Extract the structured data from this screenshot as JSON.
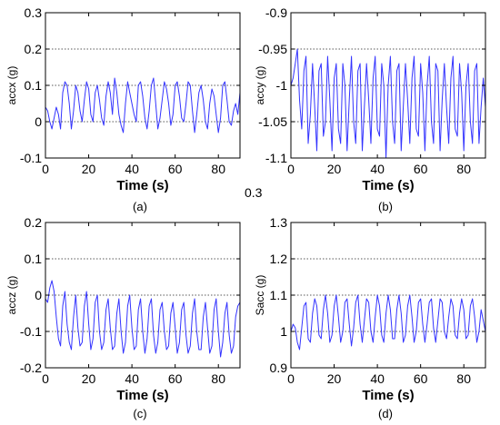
{
  "stray_label": "0.3",
  "chart_data": [
    {
      "type": "line",
      "caption": "(a)",
      "xlabel": "Time (s)",
      "ylabel": "accx (g)",
      "xlim": [
        0,
        90
      ],
      "ylim": [
        -0.1,
        0.3
      ],
      "xticks": [
        0,
        20,
        40,
        60,
        80
      ],
      "xtick_labels": [
        "0",
        "20",
        "40",
        "60",
        "80"
      ],
      "yticks": [
        -0.1,
        0,
        0.1,
        0.2,
        0.3
      ],
      "ytick_labels": [
        "-0.1",
        "0",
        "0.1",
        "0.2",
        "0.3"
      ],
      "grid": "horizontal dotted",
      "line_color": "#3333ff",
      "series": [
        {
          "x": [
            0,
            1,
            2,
            3,
            4,
            5,
            6,
            7,
            8,
            9,
            10,
            11,
            12,
            13,
            14,
            15,
            16,
            17,
            18,
            19,
            20,
            21,
            22,
            23,
            24,
            25,
            26,
            27,
            28,
            29,
            30,
            31,
            32,
            33,
            34,
            35,
            36,
            37,
            38,
            39,
            40,
            41,
            42,
            43,
            44,
            45,
            46,
            47,
            48,
            49,
            50,
            51,
            52,
            53,
            54,
            55,
            56,
            57,
            58,
            59,
            60,
            61,
            62,
            63,
            64,
            65,
            66,
            67,
            68,
            69,
            70,
            71,
            72,
            73,
            74,
            75,
            76,
            77,
            78,
            79,
            80,
            81,
            82,
            83,
            84,
            85,
            86,
            87,
            88,
            89,
            90
          ],
          "y": [
            0.04,
            0.03,
            0.0,
            -0.02,
            0.01,
            0.04,
            0.02,
            -0.02,
            0.08,
            0.11,
            0.1,
            0.05,
            -0.02,
            0.03,
            0.1,
            0.08,
            0.03,
            0.0,
            0.06,
            0.11,
            0.09,
            0.02,
            0.0,
            0.08,
            0.1,
            0.06,
            0.01,
            -0.01,
            0.07,
            0.11,
            0.08,
            0.02,
            0.12,
            0.08,
            0.02,
            -0.01,
            -0.03,
            0.05,
            0.11,
            0.08,
            0.05,
            0.02,
            0.0,
            0.1,
            0.11,
            0.07,
            0.01,
            -0.02,
            0.03,
            0.1,
            0.12,
            0.05,
            -0.02,
            0.01,
            0.06,
            0.11,
            0.09,
            0.05,
            -0.01,
            0.02,
            0.1,
            0.11,
            0.07,
            0.01,
            0.0,
            0.05,
            0.11,
            0.1,
            0.03,
            -0.03,
            0.02,
            0.08,
            0.1,
            0.06,
            0.0,
            -0.02,
            0.05,
            0.09,
            0.07,
            0.02,
            -0.03,
            0.01,
            0.1,
            0.11,
            0.06,
            0.0,
            -0.01,
            0.03,
            0.05,
            0.02,
            0.08
          ]
        }
      ]
    },
    {
      "type": "line",
      "caption": "(b)",
      "xlabel": "Time (s)",
      "ylabel": "accy (g)",
      "xlim": [
        0,
        90
      ],
      "ylim": [
        -1.1,
        -0.9
      ],
      "xticks": [
        0,
        20,
        40,
        60,
        80
      ],
      "xtick_labels": [
        "0",
        "20",
        "40",
        "60",
        "80"
      ],
      "yticks": [
        -1.1,
        -1.05,
        -1.0,
        -0.95,
        -0.9
      ],
      "ytick_labels": [
        "-1.1",
        "-1.05",
        "-1",
        "-0.95",
        "-0.9"
      ],
      "grid": "horizontal dotted",
      "line_color": "#3333ff",
      "series": [
        {
          "x": [
            0,
            1,
            2,
            3,
            4,
            5,
            6,
            7,
            8,
            9,
            10,
            11,
            12,
            13,
            14,
            15,
            16,
            17,
            18,
            19,
            20,
            21,
            22,
            23,
            24,
            25,
            26,
            27,
            28,
            29,
            30,
            31,
            32,
            33,
            34,
            35,
            36,
            37,
            38,
            39,
            40,
            41,
            42,
            43,
            44,
            45,
            46,
            47,
            48,
            49,
            50,
            51,
            52,
            53,
            54,
            55,
            56,
            57,
            58,
            59,
            60,
            61,
            62,
            63,
            64,
            65,
            66,
            67,
            68,
            69,
            70,
            71,
            72,
            73,
            74,
            75,
            76,
            77,
            78,
            79,
            80,
            81,
            82,
            83,
            84,
            85,
            86,
            87,
            88,
            89,
            90
          ],
          "y": [
            -1.0,
            -0.99,
            -0.97,
            -0.95,
            -1.02,
            -1.06,
            -0.98,
            -0.96,
            -1.08,
            -1.04,
            -0.97,
            -1.03,
            -1.09,
            -0.98,
            -0.97,
            -1.07,
            -1.05,
            -0.96,
            -1.02,
            -1.09,
            -0.99,
            -0.97,
            -1.06,
            -1.08,
            -0.97,
            -1.0,
            -1.09,
            -1.02,
            -0.96,
            -1.05,
            -1.08,
            -0.98,
            -0.97,
            -1.09,
            -1.03,
            -0.97,
            -1.02,
            -1.08,
            -0.99,
            -0.96,
            -1.06,
            -1.07,
            -0.97,
            -1.0,
            -1.1,
            -1.0,
            -0.96,
            -1.05,
            -1.08,
            -0.98,
            -0.97,
            -1.09,
            -1.03,
            -0.97,
            -1.02,
            -1.08,
            -0.99,
            -0.96,
            -1.06,
            -1.07,
            -0.97,
            -1.01,
            -1.09,
            -1.0,
            -0.96,
            -1.05,
            -1.08,
            -0.97,
            -0.98,
            -1.09,
            -1.02,
            -0.97,
            -1.03,
            -1.08,
            -0.99,
            -0.96,
            -1.06,
            -1.07,
            -0.97,
            -1.01,
            -1.09,
            -1.0,
            -0.97,
            -1.05,
            -1.08,
            -0.98,
            -0.97,
            -1.08,
            -1.03,
            -0.99,
            -1.03
          ]
        }
      ]
    },
    {
      "type": "line",
      "caption": "(c)",
      "xlabel": "Time (s)",
      "ylabel": "accz (g)",
      "xlim": [
        0,
        90
      ],
      "ylim": [
        -0.2,
        0.2
      ],
      "xticks": [
        0,
        20,
        40,
        60,
        80
      ],
      "xtick_labels": [
        "0",
        "20",
        "40",
        "60",
        "80"
      ],
      "yticks": [
        -0.2,
        -0.1,
        0,
        0.1,
        0.2
      ],
      "ytick_labels": [
        "-0.2",
        "-0.1",
        "0",
        "0.1",
        "0.2"
      ],
      "grid": "horizontal dotted",
      "line_color": "#3333ff",
      "series": [
        {
          "x": [
            0,
            1,
            2,
            3,
            4,
            5,
            6,
            7,
            8,
            9,
            10,
            11,
            12,
            13,
            14,
            15,
            16,
            17,
            18,
            19,
            20,
            21,
            22,
            23,
            24,
            25,
            26,
            27,
            28,
            29,
            30,
            31,
            32,
            33,
            34,
            35,
            36,
            37,
            38,
            39,
            40,
            41,
            42,
            43,
            44,
            45,
            46,
            47,
            48,
            49,
            50,
            51,
            52,
            53,
            54,
            55,
            56,
            57,
            58,
            59,
            60,
            61,
            62,
            63,
            64,
            65,
            66,
            67,
            68,
            69,
            70,
            71,
            72,
            73,
            74,
            75,
            76,
            77,
            78,
            79,
            80,
            81,
            82,
            83,
            84,
            85,
            86,
            87,
            88,
            89,
            90
          ],
          "y": [
            -0.01,
            -0.02,
            0.02,
            0.04,
            0.01,
            -0.06,
            -0.12,
            -0.14,
            -0.03,
            0.01,
            -0.08,
            -0.13,
            -0.15,
            -0.06,
            0.0,
            -0.09,
            -0.14,
            -0.13,
            -0.03,
            0.01,
            -0.08,
            -0.15,
            -0.12,
            -0.02,
            0.0,
            -0.1,
            -0.15,
            -0.13,
            -0.04,
            -0.01,
            -0.09,
            -0.15,
            -0.14,
            -0.05,
            -0.01,
            -0.1,
            -0.16,
            -0.13,
            -0.03,
            0.0,
            -0.09,
            -0.15,
            -0.14,
            -0.04,
            -0.01,
            -0.1,
            -0.16,
            -0.12,
            -0.03,
            -0.01,
            -0.11,
            -0.16,
            -0.13,
            -0.04,
            -0.02,
            -0.1,
            -0.15,
            -0.14,
            -0.05,
            -0.02,
            -0.09,
            -0.16,
            -0.13,
            -0.04,
            -0.02,
            -0.11,
            -0.16,
            -0.14,
            -0.05,
            -0.01,
            -0.1,
            -0.15,
            -0.15,
            -0.06,
            -0.02,
            -0.09,
            -0.16,
            -0.14,
            -0.04,
            -0.01,
            -0.1,
            -0.17,
            -0.13,
            -0.05,
            -0.02,
            -0.11,
            -0.16,
            -0.14,
            -0.06,
            -0.03,
            -0.02
          ]
        }
      ]
    },
    {
      "type": "line",
      "caption": "(d)",
      "xlabel": "Time (s)",
      "ylabel": "Sacc (g)",
      "xlim": [
        0,
        90
      ],
      "ylim": [
        0.9,
        1.3
      ],
      "xticks": [
        0,
        20,
        40,
        60,
        80
      ],
      "xtick_labels": [
        "0",
        "20",
        "40",
        "60",
        "80"
      ],
      "yticks": [
        0.9,
        1.0,
        1.1,
        1.2,
        1.3
      ],
      "ytick_labels": [
        "0.9",
        "1",
        "1.1",
        "1.2",
        "1.3"
      ],
      "grid": "horizontal dotted",
      "line_color": "#3333ff",
      "series": [
        {
          "x": [
            0,
            1,
            2,
            3,
            4,
            5,
            6,
            7,
            8,
            9,
            10,
            11,
            12,
            13,
            14,
            15,
            16,
            17,
            18,
            19,
            20,
            21,
            22,
            23,
            24,
            25,
            26,
            27,
            28,
            29,
            30,
            31,
            32,
            33,
            34,
            35,
            36,
            37,
            38,
            39,
            40,
            41,
            42,
            43,
            44,
            45,
            46,
            47,
            48,
            49,
            50,
            51,
            52,
            53,
            54,
            55,
            56,
            57,
            58,
            59,
            60,
            61,
            62,
            63,
            64,
            65,
            66,
            67,
            68,
            69,
            70,
            71,
            72,
            73,
            74,
            75,
            76,
            77,
            78,
            79,
            80,
            81,
            82,
            83,
            84,
            85,
            86,
            87,
            88,
            89,
            90
          ],
          "y": [
            1.0,
            1.02,
            1.01,
            0.97,
            0.95,
            1.01,
            1.07,
            1.08,
            0.98,
            0.97,
            1.05,
            1.09,
            1.07,
            0.99,
            0.98,
            1.06,
            1.1,
            1.05,
            0.97,
            0.99,
            1.07,
            1.1,
            1.04,
            0.97,
            1.0,
            1.08,
            1.09,
            1.02,
            0.96,
            1.01,
            1.08,
            1.1,
            1.02,
            0.97,
            1.03,
            1.09,
            1.08,
            1.0,
            0.97,
            1.04,
            1.1,
            1.07,
            0.99,
            0.97,
            1.05,
            1.1,
            1.06,
            0.98,
            0.98,
            1.06,
            1.1,
            1.05,
            0.97,
            0.99,
            1.07,
            1.1,
            1.04,
            0.97,
            1.0,
            1.08,
            1.09,
            1.02,
            0.97,
            1.02,
            1.08,
            1.09,
            1.01,
            0.97,
            1.03,
            1.09,
            1.08,
            1.0,
            0.98,
            1.04,
            1.09,
            1.07,
            0.99,
            0.98,
            1.05,
            1.09,
            1.06,
            0.98,
            0.99,
            1.07,
            1.09,
            1.04,
            0.97,
            1.0,
            1.06,
            1.03,
            1.0
          ]
        }
      ]
    }
  ]
}
